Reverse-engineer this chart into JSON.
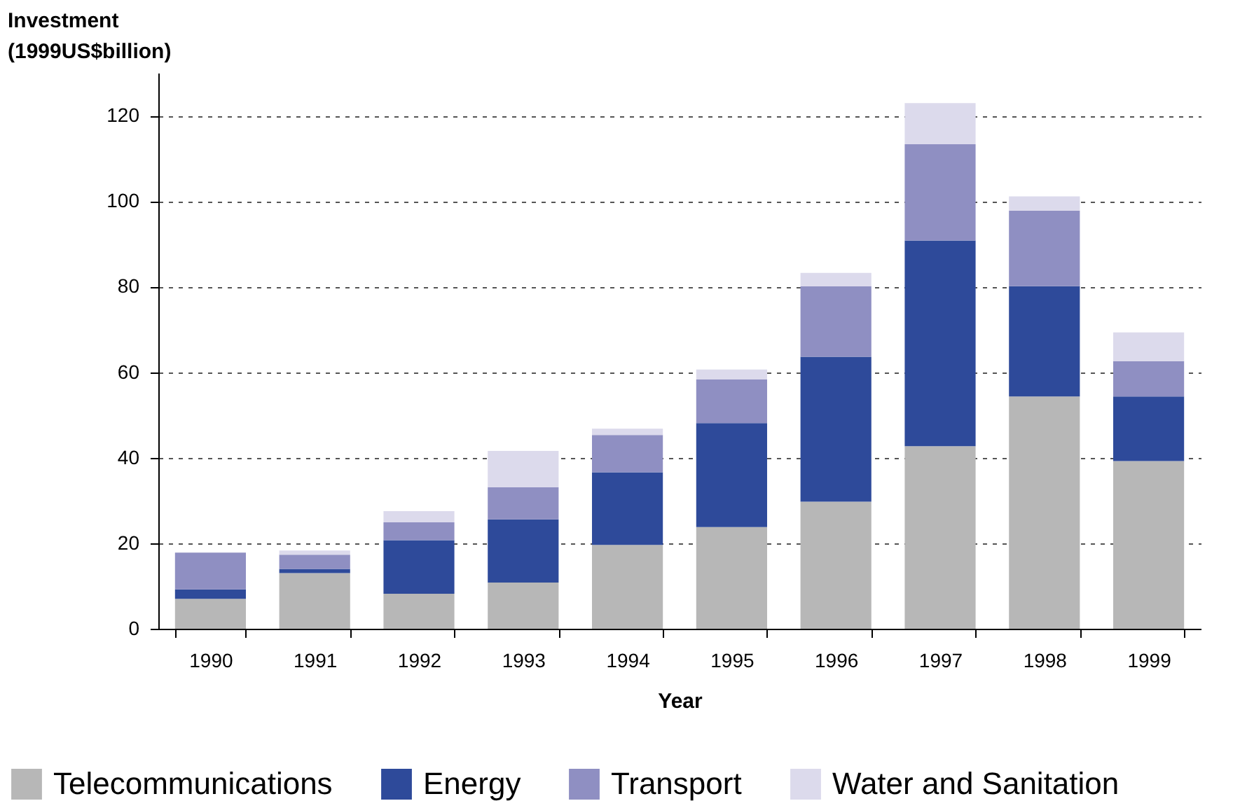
{
  "chart_data": {
    "type": "bar",
    "stacked": true,
    "xlabel": "Year",
    "ylabel": "Investment (1999US$billion)",
    "categories": [
      "1990",
      "1991",
      "1992",
      "1993",
      "1994",
      "1995",
      "1996",
      "1997",
      "1998",
      "1999"
    ],
    "series": [
      {
        "name": "Telecommunications",
        "color": "#b7b7b7",
        "values": [
          7,
          13,
          8.2,
          10.8,
          19.6,
          23.8,
          29.7,
          42.7,
          54.3,
          39.2
        ]
      },
      {
        "name": "Energy",
        "color": "#2e4a9a",
        "values": [
          2.2,
          1,
          12.5,
          14.8,
          17,
          24.3,
          33.9,
          48.1,
          25.8,
          15.1
        ]
      },
      {
        "name": "Transport",
        "color": "#8f8fc2",
        "values": [
          8.6,
          3.3,
          4.2,
          7.5,
          8.7,
          10.2,
          16.5,
          22.5,
          17.7,
          8.3
        ]
      },
      {
        "name": "Water and Sanitation",
        "color": "#dcdaec",
        "values": [
          0,
          1,
          2.6,
          8.5,
          1.5,
          2.3,
          3.1,
          9.6,
          3.3,
          6.7
        ]
      }
    ],
    "ylim": [
      0,
      130
    ],
    "yticks": [
      0,
      20,
      40,
      60,
      80,
      100,
      120
    ],
    "grid": "y",
    "legend": "bottom"
  }
}
